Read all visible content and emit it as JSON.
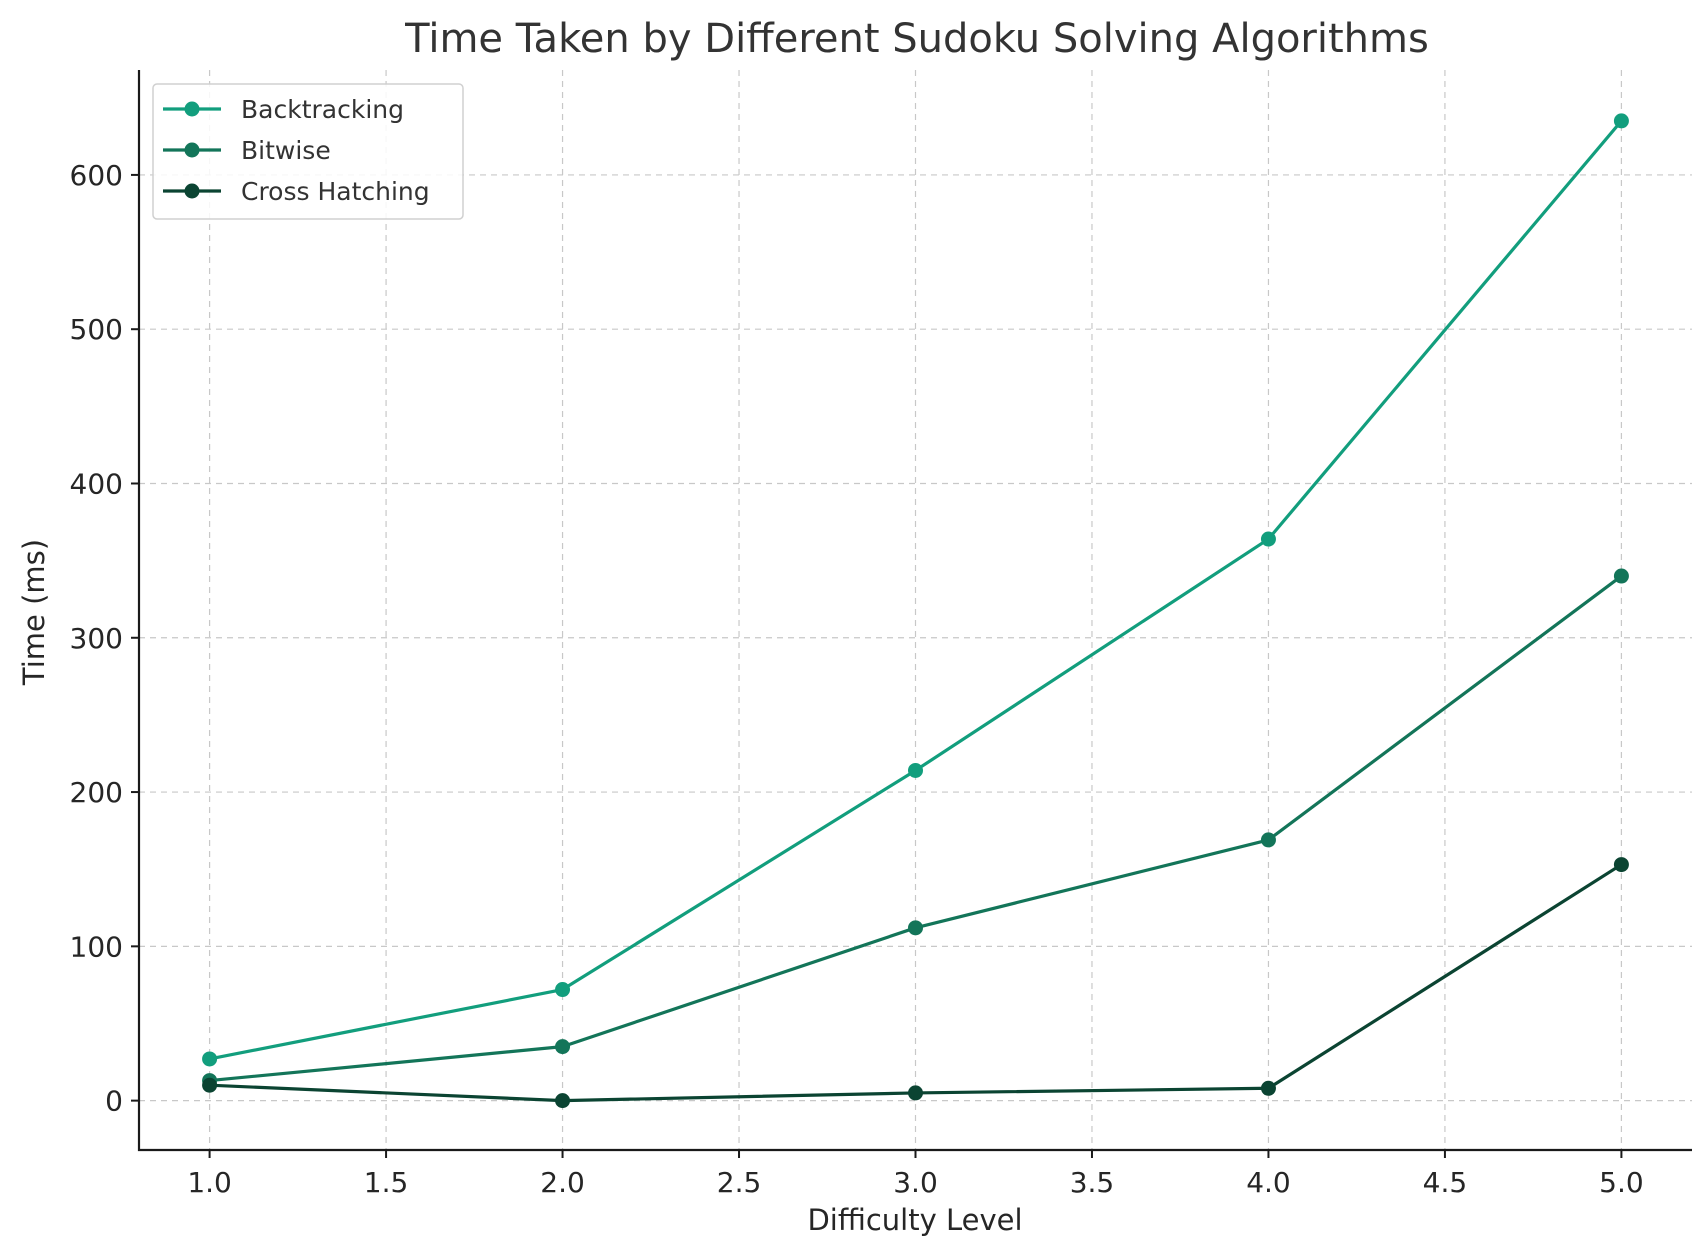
{
  "chart_data": {
    "type": "line",
    "title": "Time Taken by Different Sudoku Solving Algorithms",
    "xlabel": "Difficulty Level",
    "ylabel": "Time (ms)",
    "x": [
      1,
      2,
      3,
      4,
      5
    ],
    "xlim": [
      0.8,
      5.2
    ],
    "ylim": [
      -32,
      668
    ],
    "xticks": [
      "1.0",
      "1.5",
      "2.0",
      "2.5",
      "3.0",
      "3.5",
      "4.0",
      "4.5",
      "5.0"
    ],
    "xtick_values": [
      1.0,
      1.5,
      2.0,
      2.5,
      3.0,
      3.5,
      4.0,
      4.5,
      5.0
    ],
    "yticks": [
      "0",
      "100",
      "200",
      "300",
      "400",
      "500",
      "600"
    ],
    "ytick_values": [
      0,
      100,
      200,
      300,
      400,
      500,
      600
    ],
    "grid": true,
    "legend_position": "top-left",
    "series": [
      {
        "name": "Backtracking",
        "color": "#129e7d",
        "values": [
          27,
          72,
          214,
          364,
          635
        ]
      },
      {
        "name": "Bitwise",
        "color": "#137559",
        "values": [
          13,
          35,
          112,
          169,
          340
        ]
      },
      {
        "name": "Cross Hatching",
        "color": "#0b4432",
        "values": [
          10,
          0,
          5,
          8,
          153
        ]
      }
    ]
  }
}
